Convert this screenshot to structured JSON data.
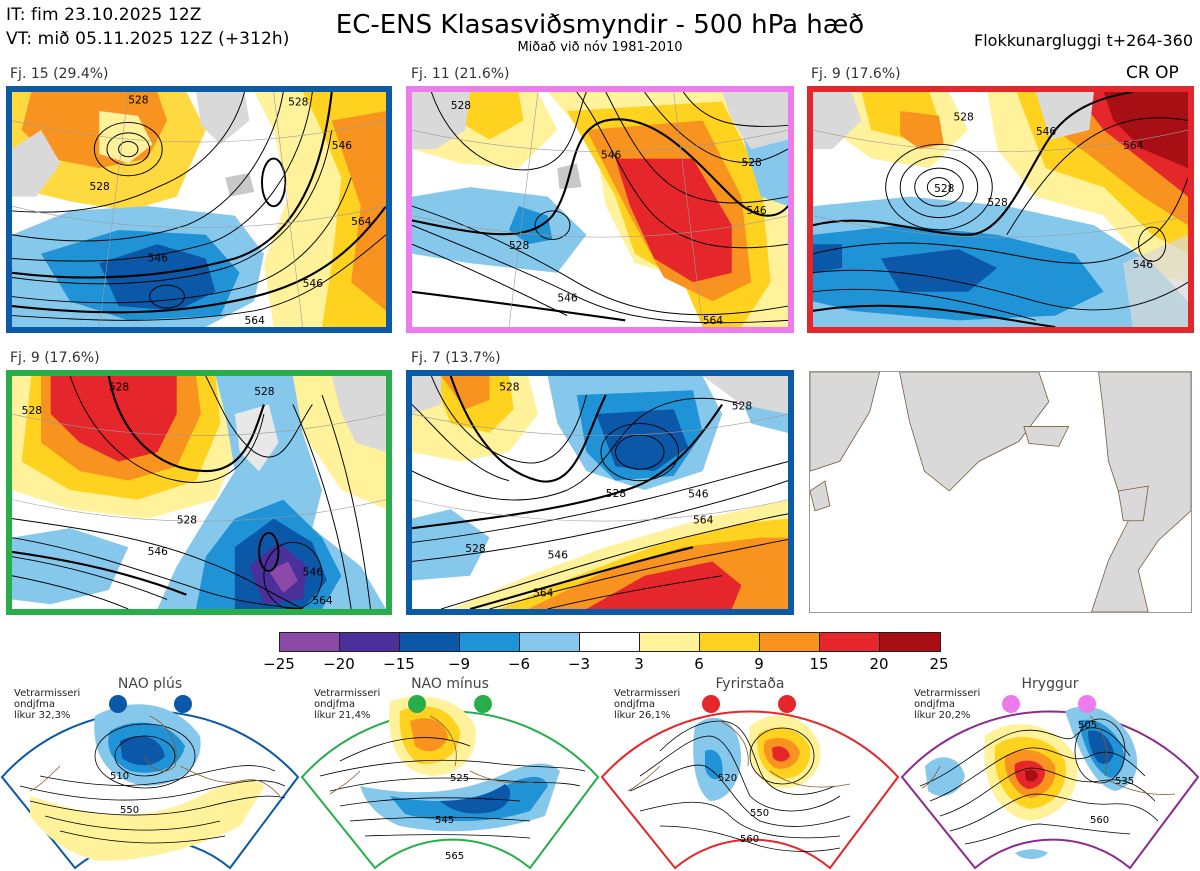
{
  "header": {
    "init_time": "IT: fim 23.10.2025 12Z",
    "valid_time": "VT: mið 05.11.2025 12Z  (+312h)",
    "title": "EC-ENS Klasasviðsmyndir - 500 hPa hæð",
    "subtitle": "Miðað við nóv 1981-2010",
    "window": "Flokkunargluggi t+264-360"
  },
  "cr_op_label": "CR OP",
  "panels": [
    {
      "label": "Fj. 15 (29.4%)",
      "border_color": "#0b5aa6",
      "contour_labels": [
        "528",
        "528",
        "546",
        "564",
        "546",
        "528",
        "546",
        "564"
      ]
    },
    {
      "label": "Fj. 11 (21.6%)",
      "border_color": "#ee7bed",
      "contour_labels": [
        "528",
        "528",
        "546",
        "528",
        "546",
        "546",
        "564"
      ]
    },
    {
      "label": "Fj. 9 (17.6%)",
      "border_color": "#e5262a",
      "contour_labels": [
        "528",
        "528",
        "546",
        "564",
        "546",
        "528"
      ]
    },
    {
      "label": "Fj. 9 (17.6%)",
      "border_color": "#27ae4a",
      "contour_labels": [
        "528",
        "528",
        "528",
        "546",
        "528",
        "546",
        "564"
      ]
    },
    {
      "label": "Fj. 7 (13.7%)",
      "border_color": "#0b5aa6",
      "contour_labels": [
        "528",
        "528",
        "528",
        "546",
        "528",
        "546",
        "564",
        "564"
      ]
    }
  ],
  "colorbar": {
    "ticks": [
      "−25",
      "−20",
      "−15",
      "−9",
      "−6",
      "−3",
      "3",
      "6",
      "9",
      "15",
      "20",
      "25"
    ],
    "colors": [
      "#8c4aa8",
      "#4b2f9a",
      "#0b57a8",
      "#1f93d6",
      "#86c8ec",
      "#ffffff",
      "#fff29a",
      "#ffd21f",
      "#f7931e",
      "#e5262a",
      "#a80f14"
    ]
  },
  "regimes": [
    {
      "title": "NAO plús",
      "note": [
        "Vetrarmisseri",
        "ondjfma",
        "líkur 32,3%"
      ],
      "dot_color": "#0b57a8",
      "frame_color": "#0b57a8",
      "contour_labels": [
        "510",
        "550"
      ]
    },
    {
      "title": "NAO mínus",
      "note": [
        "Vetrarmisseri",
        "ondjfma",
        "líkur 21,4%"
      ],
      "dot_color": "#27ae4a",
      "frame_color": "#27ae4a",
      "contour_labels": [
        "525",
        "545",
        "565"
      ]
    },
    {
      "title": "Fyrirstaða",
      "note": [
        "Vetrarmisseri",
        "ondjfma",
        "líkur 26,1%"
      ],
      "dot_color": "#e5262a",
      "frame_color": "#e5262a",
      "contour_labels": [
        "520",
        "550",
        "560"
      ]
    },
    {
      "title": "Hryggur",
      "note": [
        "Vetrarmisseri",
        "ondjfma",
        "líkur 20,2%"
      ],
      "dot_color": "#ee7bed",
      "frame_color": "#8b2a8f",
      "contour_labels": [
        "505",
        "535",
        "560"
      ]
    }
  ]
}
